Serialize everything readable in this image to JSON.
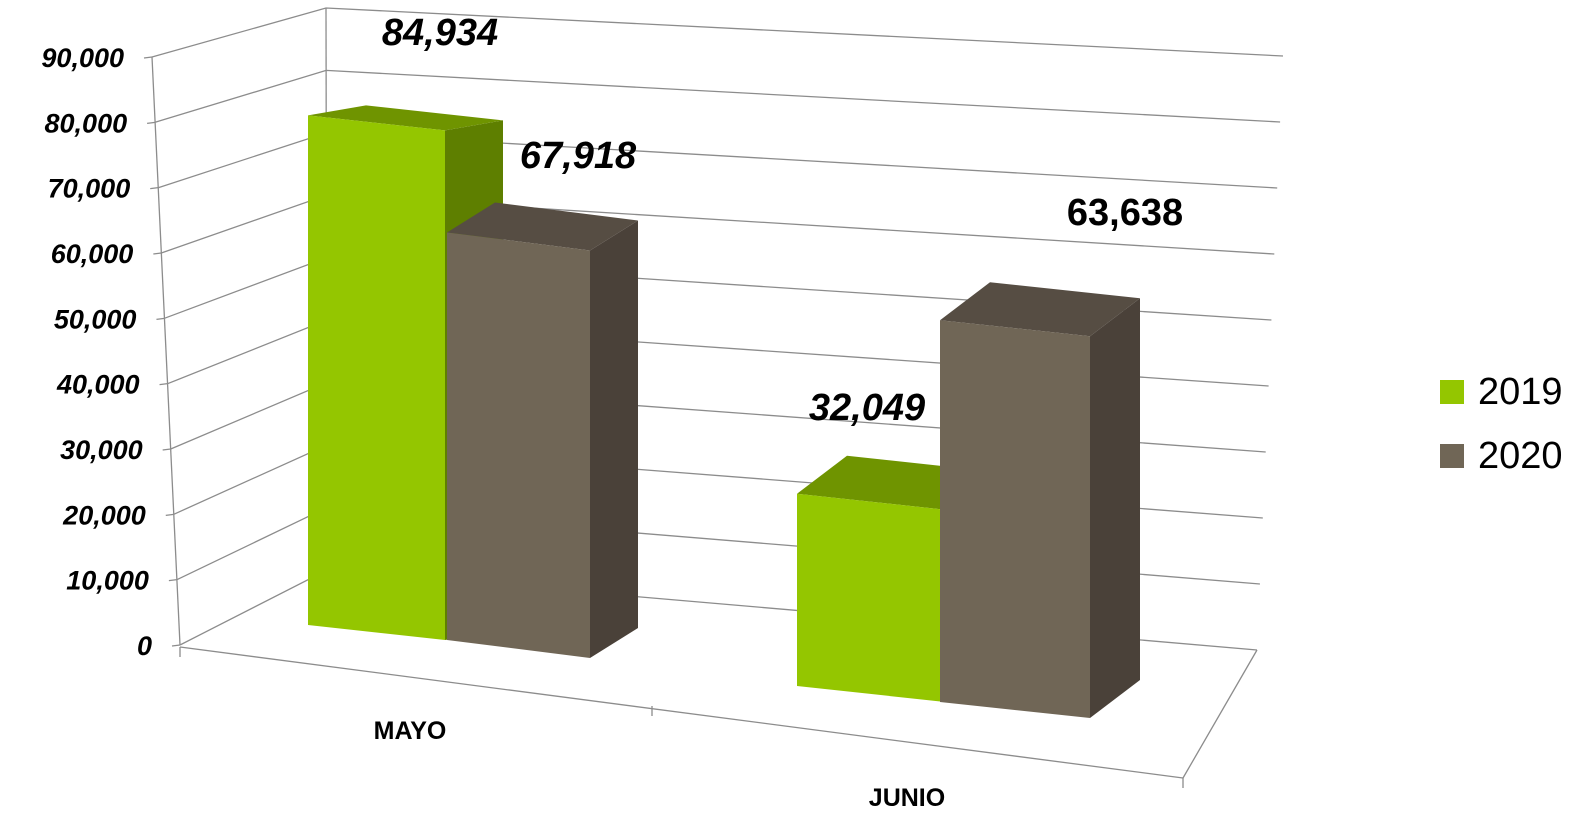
{
  "chart_data": {
    "type": "bar",
    "categories": [
      "MAYO",
      "JUNIO"
    ],
    "series": [
      {
        "name": "2019",
        "values": [
          84934,
          32049
        ],
        "color": "#94c600",
        "top_color": "#6f9400",
        "side_color": "#5e7f00"
      },
      {
        "name": "2020",
        "values": [
          67918,
          63638
        ],
        "color": "#706656",
        "top_color": "#564d43",
        "side_color": "#4a4139"
      }
    ],
    "data_labels": [
      [
        "84,934",
        "32,049"
      ],
      [
        "67,918",
        "63,638"
      ]
    ],
    "y_ticks": [
      "0",
      "10,000",
      "20,000",
      "30,000",
      "40,000",
      "50,000",
      "60,000",
      "70,000",
      "80,000",
      "90,000"
    ],
    "ylim": [
      0,
      90000
    ],
    "grid": true,
    "legend_position": "right",
    "view": "3d-perspective",
    "title": "",
    "xlabel": "",
    "ylabel": ""
  }
}
